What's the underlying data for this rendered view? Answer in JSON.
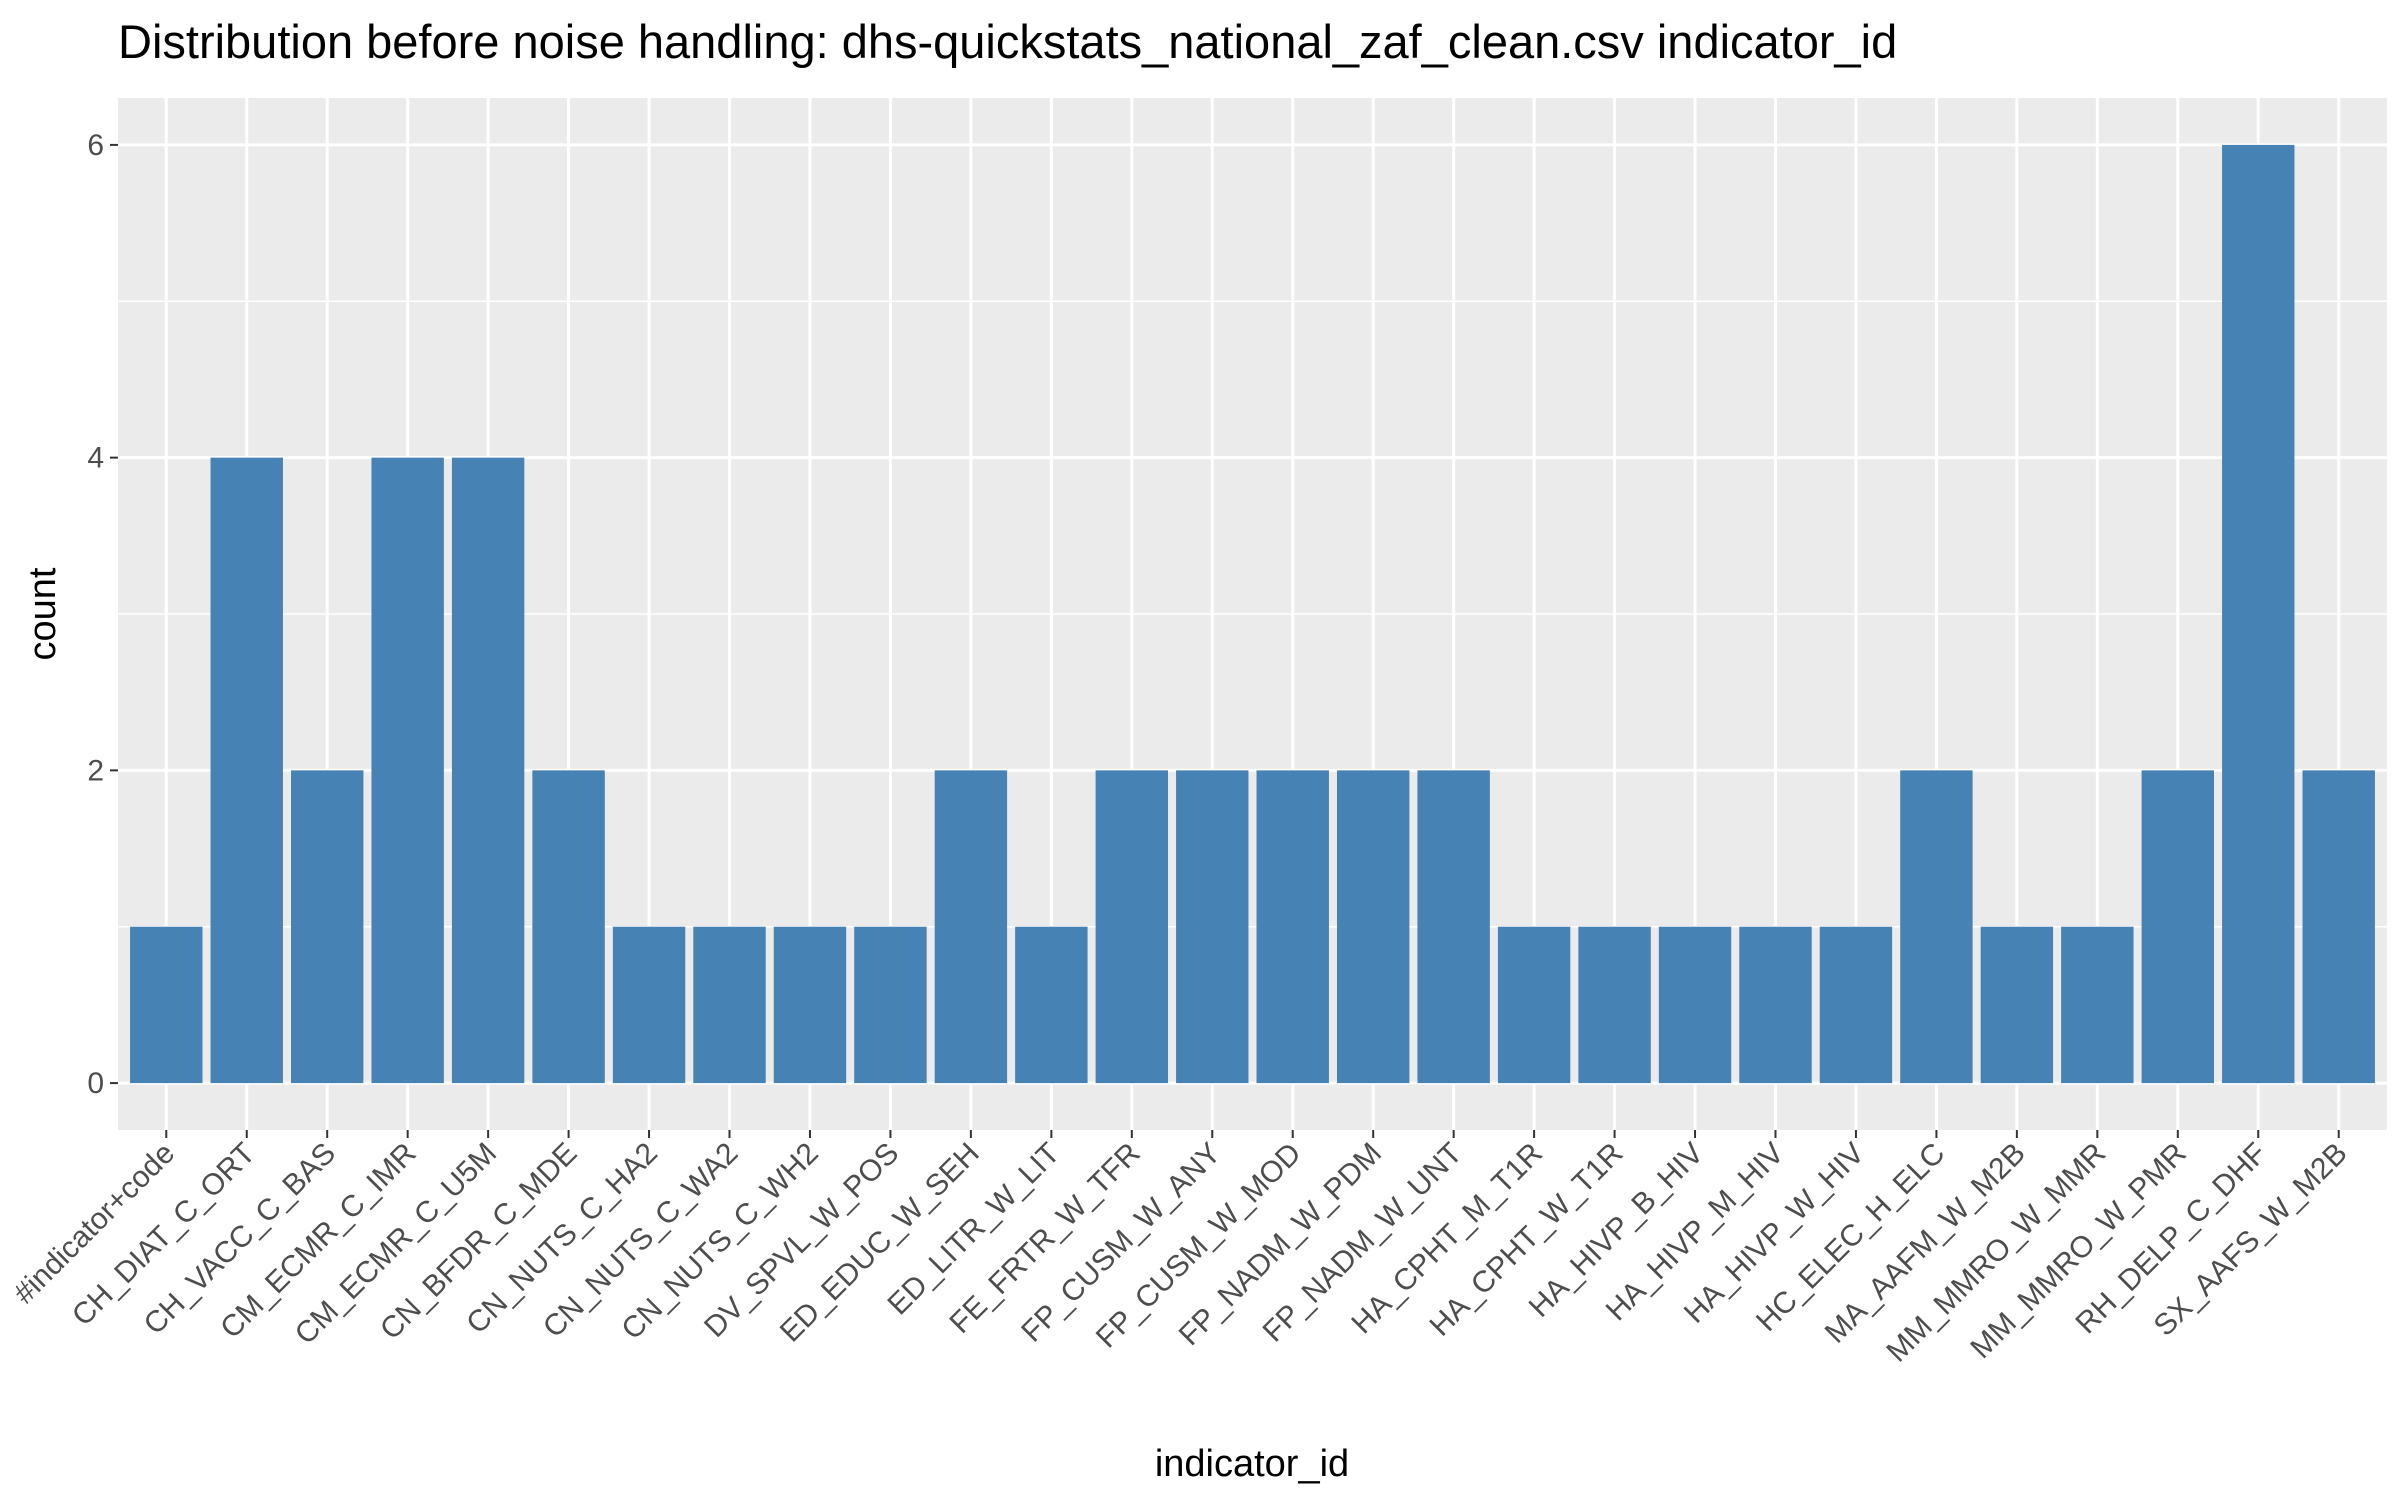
{
  "chart_data": {
    "type": "bar",
    "title": "Distribution before noise handling: dhs-quickstats_national_zaf_clean.csv indicator_id",
    "xlabel": "indicator_id",
    "ylabel": "count",
    "ylim": [
      -0.3,
      6.3
    ],
    "y_ticks": [
      0,
      2,
      4,
      6
    ],
    "grid": true,
    "bar_color": "#4682B4",
    "panel_color": "#EBEBEB",
    "categories": [
      "#indicator+code",
      "CH_DIAT_C_ORT",
      "CH_VACC_C_BAS",
      "CM_ECMR_C_IMR",
      "CM_ECMR_C_U5M",
      "CN_BFDR_C_MDE",
      "CN_NUTS_C_HA2",
      "CN_NUTS_C_WA2",
      "CN_NUTS_C_WH2",
      "DV_SPVL_W_POS",
      "ED_EDUC_W_SEH",
      "ED_LITR_W_LIT",
      "FE_FRTR_W_TFR",
      "FP_CUSM_W_ANY",
      "FP_CUSM_W_MOD",
      "FP_NADM_W_PDM",
      "FP_NADM_W_UNT",
      "HA_CPHT_M_T1R",
      "HA_CPHT_W_T1R",
      "HA_HIVP_B_HIV",
      "HA_HIVP_M_HIV",
      "HA_HIVP_W_HIV",
      "HC_ELEC_H_ELC",
      "MA_AAFM_W_M2B",
      "MM_MMRO_W_MMR",
      "MM_MMRO_W_PMR",
      "RH_DELP_C_DHF",
      "SX_AAFS_W_M2B"
    ],
    "values": [
      1,
      4,
      2,
      4,
      4,
      2,
      1,
      1,
      1,
      1,
      2,
      1,
      2,
      2,
      2,
      2,
      2,
      1,
      1,
      1,
      1,
      1,
      2,
      1,
      1,
      2,
      6,
      2
    ]
  }
}
